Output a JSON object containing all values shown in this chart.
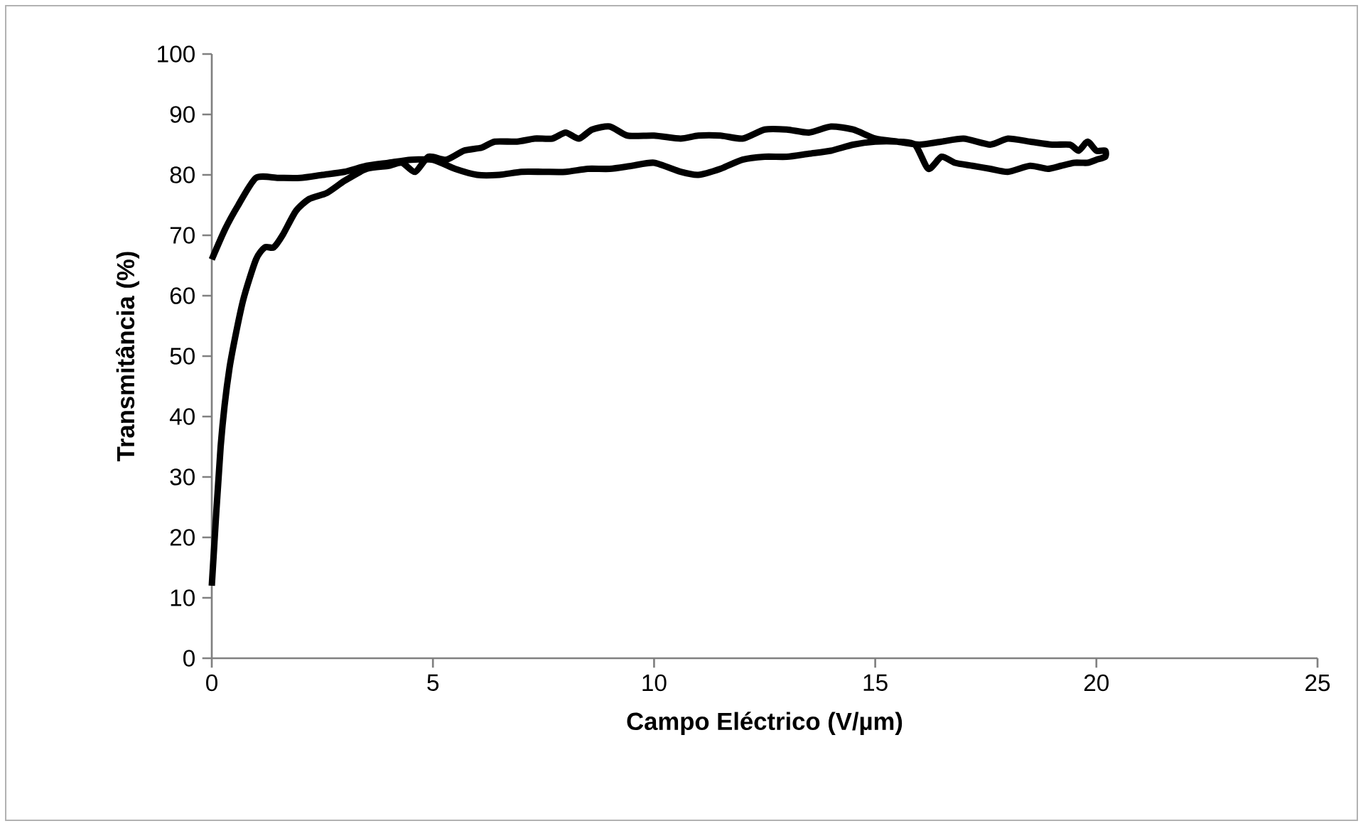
{
  "chart_data": {
    "type": "line",
    "xlabel": "Campo Eléctrico (V/µm)",
    "ylabel": "Transmitância (%)",
    "xlim": [
      0,
      25
    ],
    "ylim": [
      0,
      100
    ],
    "xticks": [
      0,
      5,
      10,
      15,
      20,
      25
    ],
    "yticks": [
      0,
      10,
      20,
      30,
      40,
      50,
      60,
      70,
      80,
      90,
      100
    ],
    "grid": false,
    "marker": "none",
    "line_style": "solid",
    "series": [
      {
        "color": "#000000",
        "x": [
          0,
          0.2,
          0.4,
          0.7,
          1.0,
          1.2,
          1.4,
          1.6,
          1.9,
          2.2,
          2.6,
          3.0,
          3.5,
          4.0,
          4.3,
          4.6,
          4.9,
          5.3,
          5.7,
          6.1,
          6.4,
          6.9,
          7.3,
          7.7,
          8.0,
          8.3,
          8.6,
          9.0,
          9.4,
          10.0,
          10.6,
          11.0,
          11.5,
          12.0,
          12.5,
          13.0,
          13.5,
          14.0,
          14.5,
          15.0,
          15.5,
          16.0,
          16.5,
          17.0,
          17.6,
          18.0,
          18.5,
          19.0,
          19.4,
          19.6,
          19.8,
          20.0,
          20.2,
          20.2,
          20.0,
          19.8,
          19.5,
          19.2,
          18.9,
          18.5,
          18.0,
          17.6,
          17.2,
          16.8,
          16.5,
          16.2,
          15.9,
          15.5,
          15.0,
          14.5,
          14.0,
          13.5,
          13.0,
          12.5,
          12.0,
          11.5,
          11.0,
          10.6,
          10.0,
          9.5,
          9.0,
          8.5,
          8.0,
          7.5,
          7.0,
          6.5,
          6.0,
          5.5,
          5.0,
          4.5,
          4.0,
          3.5,
          3.0,
          2.5,
          2.0,
          1.5,
          1.0,
          0.6,
          0.3,
          0
        ],
        "values": [
          12,
          35,
          48,
          59,
          66,
          68,
          68,
          70,
          74,
          76,
          77,
          79,
          81,
          81.5,
          82,
          80.5,
          83,
          82.5,
          84,
          84.5,
          85.5,
          85.5,
          86,
          86,
          87,
          86,
          87.5,
          88,
          86.5,
          86.5,
          86,
          86.5,
          86.5,
          86,
          87.5,
          87.5,
          87,
          88,
          87.5,
          86,
          85.5,
          85,
          85.5,
          86,
          85,
          86,
          85.5,
          85,
          85,
          84,
          85.5,
          84,
          84,
          83,
          82.5,
          82,
          82,
          81.5,
          81,
          81.5,
          80.5,
          81,
          81.5,
          82,
          83,
          81,
          85,
          85.5,
          85.5,
          85,
          84,
          83.5,
          83,
          83,
          82.5,
          81,
          80,
          80.5,
          82,
          81.5,
          81,
          81,
          80.5,
          80.5,
          80.5,
          80,
          80,
          81,
          82.5,
          82.5,
          82,
          81.5,
          80.5,
          80,
          79.5,
          79.5,
          79.5,
          75,
          71,
          66
        ]
      }
    ]
  }
}
